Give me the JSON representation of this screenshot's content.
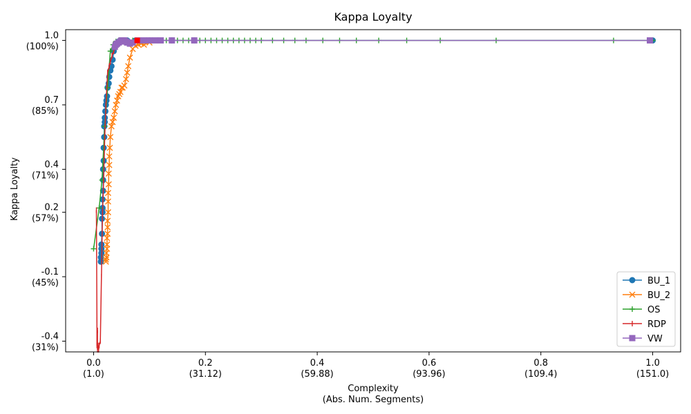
{
  "chart_data": {
    "type": "line",
    "title": "Kappa Loyalty",
    "xlabel": "Complexity",
    "xlabel_sub": "(Abs. Num. Segments)",
    "ylabel": "Kappa Loyalty",
    "xlim": [
      -0.05,
      1.05
    ],
    "ylim": [
      -0.45,
      1.05
    ],
    "grid": false,
    "legend_position": "lower-right",
    "x_ticks": [
      {
        "value": 0.0,
        "label": "0.0",
        "sub": "(1.0)"
      },
      {
        "value": 0.2,
        "label": "0.2",
        "sub": "(31.12)"
      },
      {
        "value": 0.4,
        "label": "0.4",
        "sub": "(59.88)"
      },
      {
        "value": 0.6,
        "label": "0.6",
        "sub": "(93.96)"
      },
      {
        "value": 0.8,
        "label": "0.8",
        "sub": "(109.4)"
      },
      {
        "value": 1.0,
        "label": "1.0",
        "sub": "(151.0)"
      }
    ],
    "y_ticks": [
      {
        "value": -0.4,
        "label": "-0.4",
        "sub": "(31%)"
      },
      {
        "value": -0.1,
        "label": "-0.1",
        "sub": "(45%)"
      },
      {
        "value": 0.2,
        "label": "0.2",
        "sub": "(57%)"
      },
      {
        "value": 0.4,
        "label": "0.4",
        "sub": "(71%)"
      },
      {
        "value": 0.7,
        "label": "0.7",
        "sub": "(85%)"
      },
      {
        "value": 1.0,
        "label": "1.0",
        "sub": "(100%)"
      }
    ],
    "series": [
      {
        "name": "BU_1",
        "color": "#1f77b4",
        "marker": "circle",
        "x": [
          0.013,
          0.013,
          0.014,
          0.014,
          0.014,
          0.015,
          0.015,
          0.016,
          0.016,
          0.016,
          0.017,
          0.017,
          0.017,
          0.018,
          0.018,
          0.019,
          0.019,
          0.02,
          0.02,
          0.021,
          0.022,
          0.023,
          0.024,
          0.025,
          0.027,
          0.028,
          0.03,
          0.032,
          0.034,
          0.036,
          0.04,
          0.045,
          0.05,
          0.06,
          0.075,
          0.1,
          0.14,
          0.18,
          1.0
        ],
        "y": [
          -0.03,
          -0.01,
          0.01,
          0.03,
          0.05,
          0.1,
          0.17,
          0.2,
          0.22,
          0.26,
          0.3,
          0.35,
          0.4,
          0.44,
          0.5,
          0.55,
          0.6,
          0.62,
          0.64,
          0.67,
          0.7,
          0.72,
          0.74,
          0.78,
          0.8,
          0.83,
          0.86,
          0.88,
          0.91,
          0.95,
          0.98,
          0.995,
          1.0,
          1.0,
          1.0,
          1.0,
          1.0,
          1.0,
          1.0
        ]
      },
      {
        "name": "BU_2",
        "color": "#ff7f0e",
        "marker": "x",
        "x": [
          0.022,
          0.022,
          0.023,
          0.023,
          0.024,
          0.024,
          0.024,
          0.025,
          0.025,
          0.025,
          0.026,
          0.026,
          0.026,
          0.027,
          0.027,
          0.028,
          0.028,
          0.029,
          0.03,
          0.032,
          0.034,
          0.036,
          0.038,
          0.04,
          0.042,
          0.044,
          0.046,
          0.048,
          0.05,
          0.052,
          0.055,
          0.058,
          0.06,
          0.062,
          0.065,
          0.07,
          0.075,
          0.08,
          0.085,
          0.09,
          0.1,
          0.12
        ],
        "y": [
          -0.03,
          -0.02,
          -0.01,
          0.01,
          0.03,
          0.05,
          0.08,
          0.1,
          0.13,
          0.16,
          0.2,
          0.25,
          0.29,
          0.33,
          0.38,
          0.42,
          0.46,
          0.5,
          0.55,
          0.6,
          0.62,
          0.64,
          0.67,
          0.7,
          0.72,
          0.74,
          0.75,
          0.76,
          0.78,
          0.78,
          0.79,
          0.82,
          0.85,
          0.88,
          0.92,
          0.96,
          0.975,
          0.98,
          0.985,
          0.98,
          0.99,
          1.0
        ]
      },
      {
        "name": "OS",
        "color": "#2ca02c",
        "marker": "plus",
        "x": [
          0.0,
          0.01,
          0.015,
          0.02,
          0.025,
          0.03,
          0.035,
          0.04,
          0.045,
          0.05,
          0.06,
          0.07,
          0.08,
          0.09,
          0.1,
          0.11,
          0.12,
          0.13,
          0.14,
          0.15,
          0.16,
          0.17,
          0.18,
          0.19,
          0.2,
          0.21,
          0.22,
          0.23,
          0.24,
          0.25,
          0.26,
          0.27,
          0.28,
          0.29,
          0.3,
          0.32,
          0.34,
          0.36,
          0.38,
          0.41,
          0.44,
          0.47,
          0.51,
          0.56,
          0.62,
          0.72,
          0.93,
          1.0
        ],
        "y": [
          0.03,
          0.22,
          0.35,
          0.6,
          0.78,
          0.95,
          0.98,
          0.995,
          1.0,
          1.0,
          1.0,
          1.0,
          1.0,
          1.0,
          1.0,
          1.0,
          1.0,
          1.0,
          1.0,
          1.0,
          1.0,
          1.0,
          1.0,
          1.0,
          1.0,
          1.0,
          1.0,
          1.0,
          1.0,
          1.0,
          1.0,
          1.0,
          1.0,
          1.0,
          1.0,
          1.0,
          1.0,
          1.0,
          1.0,
          1.0,
          1.0,
          1.0,
          1.0,
          1.0,
          1.0,
          1.0,
          1.0,
          1.0
        ]
      },
      {
        "name": "RDP",
        "color": "#d62728",
        "marker": "vline",
        "x": [
          0.005,
          0.006,
          0.006,
          0.007,
          0.007,
          0.008,
          0.009,
          0.01,
          0.012,
          0.014,
          0.016,
          0.018,
          0.02,
          0.022,
          0.025,
          0.028,
          0.03,
          0.033,
          0.036,
          0.04
        ],
        "y": [
          0.21,
          -0.3,
          -0.42,
          -0.35,
          -0.44,
          -0.42,
          -0.44,
          -0.42,
          -0.4,
          -0.1,
          0.2,
          0.35,
          0.55,
          0.7,
          0.85,
          0.88,
          0.9,
          0.93,
          0.95,
          0.97
        ]
      },
      {
        "name": "VW",
        "color": "#9467bd",
        "marker": "square",
        "x": [
          0.038,
          0.04,
          0.042,
          0.045,
          0.048,
          0.05,
          0.052,
          0.055,
          0.058,
          0.06,
          0.065,
          0.07,
          0.08,
          0.09,
          0.1,
          0.11,
          0.12,
          0.14,
          0.18,
          0.995
        ],
        "y": [
          0.97,
          0.98,
          0.985,
          0.99,
          0.995,
          1.0,
          1.0,
          1.0,
          0.995,
          0.99,
          0.985,
          0.99,
          1.0,
          1.0,
          1.0,
          1.0,
          1.0,
          1.0,
          1.0,
          1.0
        ]
      }
    ],
    "highlight_points": [
      {
        "x": 0.078,
        "y": 1.0,
        "color": "#ff0000"
      }
    ]
  }
}
